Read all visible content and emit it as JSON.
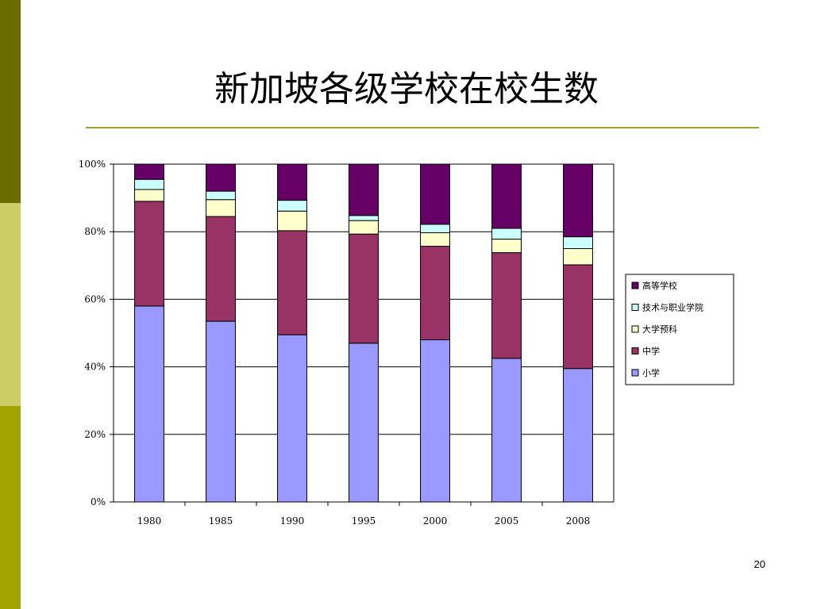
{
  "slide": {
    "title": "新加坡各级学校在校生数",
    "page_number": "20",
    "accent_colors": {
      "sidebar_dark": "#6b6b00",
      "sidebar_light": "#cdcd66",
      "sidebar_mid": "#a3a300",
      "rule": "#a4a034"
    }
  },
  "chart_data": {
    "type": "bar",
    "stacked": "percent",
    "title": "",
    "xlabel": "",
    "ylabel": "",
    "ylim": [
      0,
      100
    ],
    "yticks": [
      "0%",
      "20%",
      "40%",
      "60%",
      "80%",
      "100%"
    ],
    "categories": [
      "1980",
      "1985",
      "1990",
      "1995",
      "2000",
      "2005",
      "2008"
    ],
    "grid": "horizontal",
    "legend_position": "right",
    "series": [
      {
        "name": "小学",
        "color": "#9999ff",
        "values": [
          58.0,
          53.5,
          49.5,
          47.0,
          48.0,
          42.5,
          39.5
        ]
      },
      {
        "name": "中学",
        "color": "#993366",
        "values": [
          31.0,
          31.0,
          30.8,
          32.3,
          27.7,
          31.3,
          30.7
        ]
      },
      {
        "name": "大学预科",
        "color": "#ffffcc",
        "values": [
          3.5,
          5.0,
          5.8,
          4.0,
          4.0,
          4.0,
          4.8
        ]
      },
      {
        "name": "技术与职业学院",
        "color": "#ccffff",
        "values": [
          3.0,
          2.5,
          3.2,
          1.5,
          2.5,
          3.2,
          3.5
        ]
      },
      {
        "name": "高等学校",
        "color": "#660066",
        "values": [
          4.5,
          8.0,
          10.7,
          15.2,
          17.8,
          19.0,
          21.5
        ]
      }
    ],
    "legend_order": [
      "高等学校",
      "技术与职业学院",
      "大学预科",
      "中学",
      "小学"
    ]
  }
}
